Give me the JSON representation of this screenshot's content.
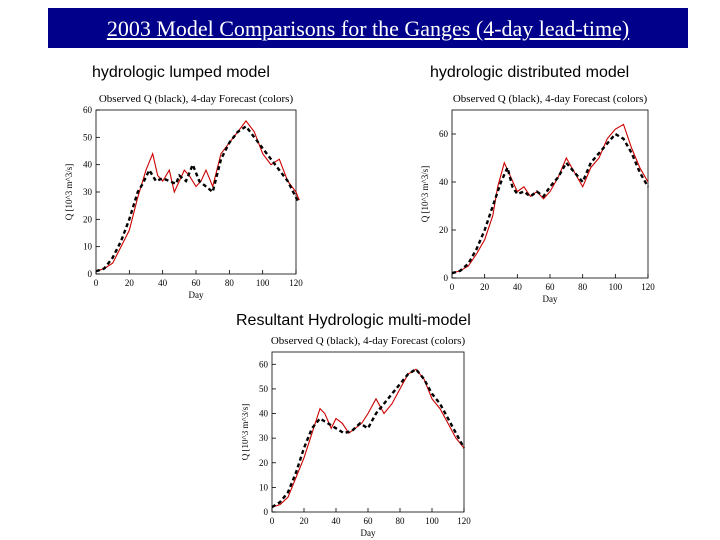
{
  "banner": {
    "title": "2003 Model Comparisons for the Ganges (4-day lead-time)",
    "background": "#00008b",
    "text_color": "#ffffff"
  },
  "headings": {
    "lumped": "hydrologic lumped model",
    "distributed": "hydrologic distributed model",
    "multi": "Resultant Hydrologic multi-model"
  },
  "chart_data": [
    {
      "id": "lumped",
      "type": "line",
      "title": "Observed Q (black), 4-day Forecast (colors)",
      "xlabel": "Day",
      "ylabel": "Q [10^3 m^3/s]",
      "xlim": [
        0,
        120
      ],
      "ylim": [
        0,
        60
      ],
      "xticks": [
        0,
        20,
        40,
        60,
        80,
        100,
        120
      ],
      "yticks": [
        0,
        10,
        20,
        30,
        40,
        50,
        60
      ],
      "observed": {
        "color": "#000000",
        "style": "dashed",
        "x": [
          0,
          5,
          10,
          15,
          20,
          25,
          28,
          32,
          36,
          40,
          44,
          48,
          50,
          54,
          58,
          62,
          66,
          70,
          75,
          80,
          85,
          90,
          95,
          100,
          105,
          110,
          115,
          120,
          122
        ],
        "y": [
          1,
          2,
          6,
          12,
          20,
          30,
          33,
          38,
          34,
          35,
          34,
          33,
          36,
          34,
          40,
          34,
          32,
          30,
          42,
          48,
          52,
          54,
          50,
          46,
          42,
          38,
          34,
          28,
          26
        ]
      },
      "forecast": {
        "color": "#cc0000",
        "style": "solid",
        "x": [
          0,
          5,
          10,
          15,
          20,
          25,
          30,
          34,
          37,
          40,
          44,
          47,
          50,
          53,
          56,
          60,
          63,
          66,
          70,
          75,
          80,
          85,
          90,
          95,
          100,
          105,
          110,
          115,
          120,
          122
        ],
        "y": [
          1,
          2,
          4,
          10,
          16,
          28,
          38,
          44,
          36,
          34,
          38,
          30,
          34,
          38,
          36,
          32,
          34,
          38,
          32,
          44,
          48,
          52,
          56,
          52,
          44,
          40,
          42,
          34,
          30,
          27
        ]
      }
    },
    {
      "id": "distributed",
      "type": "line",
      "title": "Observed Q (black), 4-day Forecast (colors)",
      "xlabel": "Day",
      "ylabel": "Q [10^3 m^3/s]",
      "xlim": [
        0,
        120
      ],
      "ylim": [
        0,
        70
      ],
      "xticks": [
        0,
        20,
        40,
        60,
        80,
        100,
        120
      ],
      "yticks": [
        0,
        20,
        40,
        60
      ],
      "observed": {
        "color": "#000000",
        "style": "dashed",
        "x": [
          0,
          5,
          10,
          15,
          20,
          25,
          30,
          34,
          37,
          40,
          44,
          48,
          52,
          56,
          60,
          65,
          70,
          75,
          80,
          85,
          90,
          95,
          100,
          105,
          110,
          115,
          120
        ],
        "y": [
          2,
          3,
          6,
          12,
          20,
          30,
          40,
          46,
          38,
          35,
          36,
          34,
          36,
          34,
          38,
          42,
          48,
          44,
          40,
          48,
          52,
          56,
          60,
          58,
          52,
          44,
          38
        ]
      },
      "forecast": {
        "color": "#cc0000",
        "style": "solid",
        "x": [
          0,
          5,
          10,
          15,
          20,
          25,
          28,
          32,
          36,
          40,
          44,
          48,
          52,
          56,
          60,
          65,
          70,
          75,
          80,
          85,
          90,
          95,
          100,
          105,
          110,
          115,
          120
        ],
        "y": [
          2,
          3,
          5,
          10,
          16,
          26,
          38,
          48,
          42,
          36,
          38,
          34,
          36,
          33,
          36,
          42,
          50,
          44,
          38,
          46,
          50,
          58,
          62,
          64,
          54,
          46,
          40
        ]
      }
    },
    {
      "id": "multi",
      "type": "line",
      "title": "Observed Q (black), 4-day Forecast (colors)",
      "xlabel": "Day",
      "ylabel": "Q [10^3 m^3/s]",
      "xlim": [
        0,
        120
      ],
      "ylim": [
        0,
        65
      ],
      "xticks": [
        0,
        20,
        40,
        60,
        80,
        100,
        120
      ],
      "yticks": [
        0,
        10,
        20,
        30,
        40,
        50,
        60
      ],
      "observed": {
        "color": "#000000",
        "style": "dashed",
        "x": [
          0,
          5,
          10,
          15,
          20,
          25,
          30,
          35,
          40,
          45,
          50,
          55,
          60,
          65,
          70,
          75,
          80,
          85,
          90,
          95,
          100,
          105,
          110,
          115,
          120
        ],
        "y": [
          2,
          4,
          8,
          16,
          26,
          34,
          38,
          36,
          34,
          32,
          33,
          36,
          34,
          40,
          44,
          48,
          52,
          56,
          58,
          54,
          48,
          44,
          38,
          32,
          26
        ]
      },
      "forecast": {
        "color": "#cc0000",
        "style": "solid",
        "x": [
          0,
          5,
          10,
          15,
          20,
          25,
          30,
          33,
          37,
          40,
          44,
          48,
          52,
          56,
          60,
          65,
          70,
          75,
          80,
          85,
          90,
          95,
          100,
          105,
          110,
          115,
          120
        ],
        "y": [
          2,
          3,
          6,
          14,
          22,
          32,
          42,
          40,
          34,
          38,
          36,
          32,
          34,
          36,
          40,
          46,
          40,
          44,
          50,
          56,
          58,
          54,
          46,
          42,
          36,
          30,
          26
        ]
      }
    }
  ]
}
